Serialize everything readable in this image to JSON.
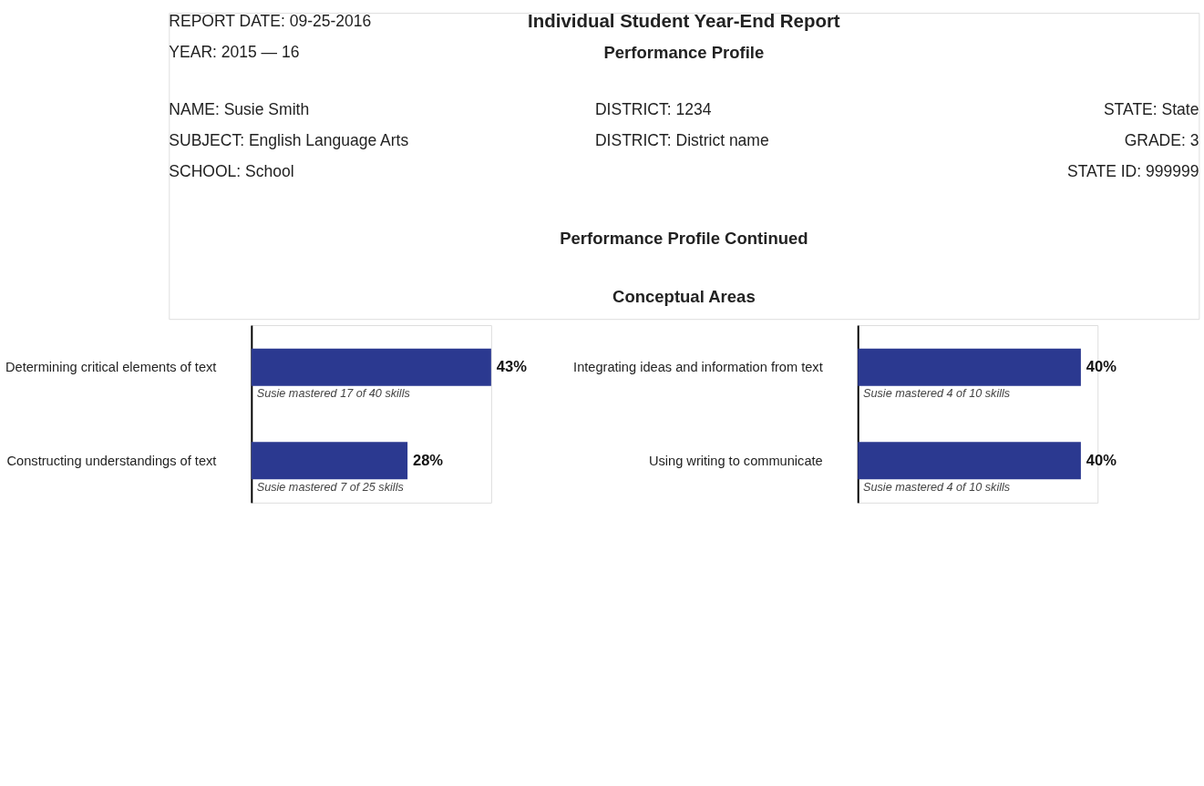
{
  "chart_data": [
    {
      "type": "other",
      "title": "Individual Student Year-End Report",
      "subtitle": "Performance Profile",
      "annotations": [
        "REPORT DATE: 09-25-2016",
        "YEAR: 2015 — 16",
        "NAME: Susie Smith",
        "SUBJECT: English Language Arts",
        "SCHOOL: School",
        "DISTRICT: 1234",
        "DISTRICT: District name",
        "STATE: State",
        "GRADE: 3",
        "STATE ID: 999999",
        "Performance Profile Continued",
        "Conceptual Areas"
      ]
    },
    {
      "type": "bar",
      "orientation": "horizontal",
      "categories": [
        "Determining critical elements of text",
        "Constructing understandings of text"
      ],
      "values": [
        43,
        28
      ],
      "color": "#2b3990",
      "value_labels": [
        "43%",
        "28%"
      ],
      "annotations": [
        "Susie mastered 17 of 40 skills",
        "Susie mastered 7 of 25 skills"
      ]
    },
    {
      "type": "bar",
      "orientation": "horizontal",
      "categories": [
        "Integrating ideas and information from text",
        "Using writing to communicate"
      ],
      "values": [
        40,
        40
      ],
      "color": "#2b3990",
      "value_labels": [
        "40%",
        "40%"
      ],
      "annotations": [
        "Susie mastered 4 of 10 skills",
        "Susie mastered 4 of 10 skills"
      ]
    }
  ]
}
